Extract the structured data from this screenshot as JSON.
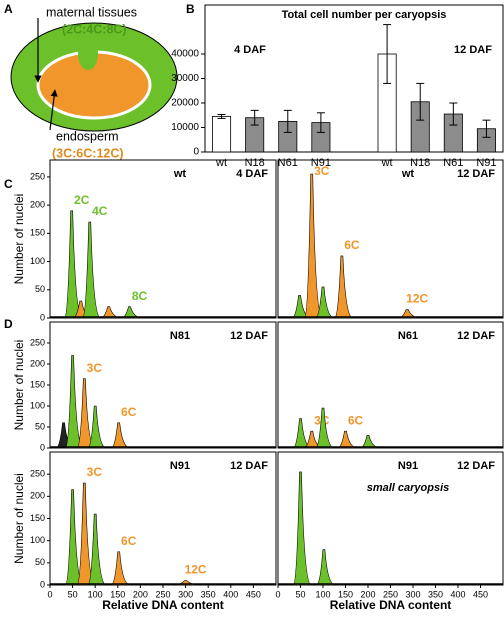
{
  "panel_labels": [
    "A",
    "B",
    "C",
    "D"
  ],
  "diagram": {
    "outer_label": "maternal tissues",
    "outer_ploidy": "(2C:4C:8C)",
    "inner_label": "endosperm",
    "inner_ploidy": "(3C:6C:12C)"
  },
  "chart_data": [
    {
      "type": "bar",
      "title": "Total cell number  per caryopsis",
      "categories": [
        "wt",
        "N18",
        "N61",
        "N91",
        "wt",
        "N18",
        "N61",
        "N91"
      ],
      "group_labels": [
        "4 DAF",
        "12 DAF"
      ],
      "values": [
        14500,
        14000,
        12500,
        12000,
        40000,
        20500,
        15500,
        9500
      ],
      "errors": [
        800,
        3000,
        4500,
        4000,
        12000,
        7500,
        4500,
        3500
      ],
      "colors": [
        "#ffffff",
        "#8c8c8c",
        "#8c8c8c",
        "#8c8c8c",
        "#ffffff",
        "#8c8c8c",
        "#8c8c8c",
        "#8c8c8c"
      ],
      "ylim": [
        0,
        60000
      ],
      "yticks": [
        0,
        10000,
        20000,
        30000,
        40000
      ]
    },
    {
      "type": "peaks",
      "sample": "wt",
      "stage": "4 DAF",
      "ylabel": "Number of nuclei",
      "xlim": [
        0,
        500
      ],
      "ylim": [
        0,
        280
      ],
      "yticks": [
        0,
        50,
        100,
        150,
        200,
        250
      ],
      "peaks": [
        {
          "x": 48,
          "y": 190,
          "color": "#6cc12a",
          "label": "2C"
        },
        {
          "x": 68,
          "y": 30,
          "color": "#f0962b"
        },
        {
          "x": 88,
          "y": 170,
          "color": "#6cc12a",
          "label": "4C"
        },
        {
          "x": 130,
          "y": 20,
          "color": "#f0962b"
        },
        {
          "x": 176,
          "y": 20,
          "color": "#6cc12a",
          "label": "8C"
        }
      ]
    },
    {
      "type": "peaks",
      "sample": "wt",
      "stage": "12 DAF",
      "xlim": [
        0,
        500
      ],
      "ylim": [
        0,
        280
      ],
      "peaks": [
        {
          "x": 48,
          "y": 40,
          "color": "#6cc12a"
        },
        {
          "x": 75,
          "y": 255,
          "color": "#f0962b",
          "label": "3C"
        },
        {
          "x": 100,
          "y": 55,
          "color": "#6cc12a"
        },
        {
          "x": 142,
          "y": 110,
          "color": "#f0962b",
          "label": "6C"
        },
        {
          "x": 287,
          "y": 15,
          "color": "#f0962b",
          "label": "12C"
        }
      ]
    },
    {
      "type": "peaks",
      "sample": "N81",
      "stage": "12 DAF",
      "ylabel": "Number of nuclei",
      "xlim": [
        0,
        500
      ],
      "ylim": [
        0,
        300
      ],
      "yticks": [
        0,
        50,
        100,
        150,
        200,
        250
      ],
      "peaks": [
        {
          "x": 30,
          "y": 60,
          "color": "#222222"
        },
        {
          "x": 50,
          "y": 220,
          "color": "#6cc12a"
        },
        {
          "x": 76,
          "y": 165,
          "color": "#f0962b",
          "label": "3C"
        },
        {
          "x": 100,
          "y": 100,
          "color": "#6cc12a"
        },
        {
          "x": 152,
          "y": 60,
          "color": "#f0962b",
          "label": "6C"
        }
      ]
    },
    {
      "type": "peaks",
      "sample": "N61",
      "stage": "12 DAF",
      "xlim": [
        0,
        500
      ],
      "ylim": [
        0,
        300
      ],
      "peaks": [
        {
          "x": 50,
          "y": 70,
          "color": "#6cc12a"
        },
        {
          "x": 75,
          "y": 40,
          "color": "#f0962b",
          "label": "3C"
        },
        {
          "x": 100,
          "y": 95,
          "color": "#6cc12a"
        },
        {
          "x": 150,
          "y": 40,
          "color": "#f0962b",
          "label": "6C"
        },
        {
          "x": 200,
          "y": 30,
          "color": "#6cc12a"
        }
      ]
    },
    {
      "type": "peaks",
      "sample": "N91",
      "stage": "12 DAF",
      "ylabel": "Number of nuclei",
      "xlabel": "Relative DNA content",
      "xlim": [
        0,
        500
      ],
      "ylim": [
        0,
        300
      ],
      "yticks": [
        0,
        50,
        100,
        150,
        200,
        250
      ],
      "xticks": [
        0,
        50,
        100,
        150,
        200,
        250,
        300,
        350,
        400,
        450
      ],
      "peaks": [
        {
          "x": 50,
          "y": 215,
          "color": "#6cc12a"
        },
        {
          "x": 76,
          "y": 230,
          "color": "#f0962b",
          "label": "3C"
        },
        {
          "x": 100,
          "y": 160,
          "color": "#6cc12a"
        },
        {
          "x": 152,
          "y": 75,
          "color": "#f0962b",
          "label": "6C"
        },
        {
          "x": 300,
          "y": 10,
          "color": "#f0962b",
          "label": "12C"
        }
      ]
    },
    {
      "type": "peaks",
      "sample": "N91",
      "stage": "12 DAF",
      "note": "small caryopsis",
      "xlabel": "Relative DNA content",
      "xlim": [
        0,
        500
      ],
      "ylim": [
        0,
        300
      ],
      "xticks": [
        0,
        50,
        100,
        150,
        200,
        250,
        300,
        350,
        400,
        450
      ],
      "peaks": [
        {
          "x": 50,
          "y": 255,
          "color": "#6cc12a"
        },
        {
          "x": 102,
          "y": 80,
          "color": "#6cc12a"
        }
      ]
    }
  ]
}
